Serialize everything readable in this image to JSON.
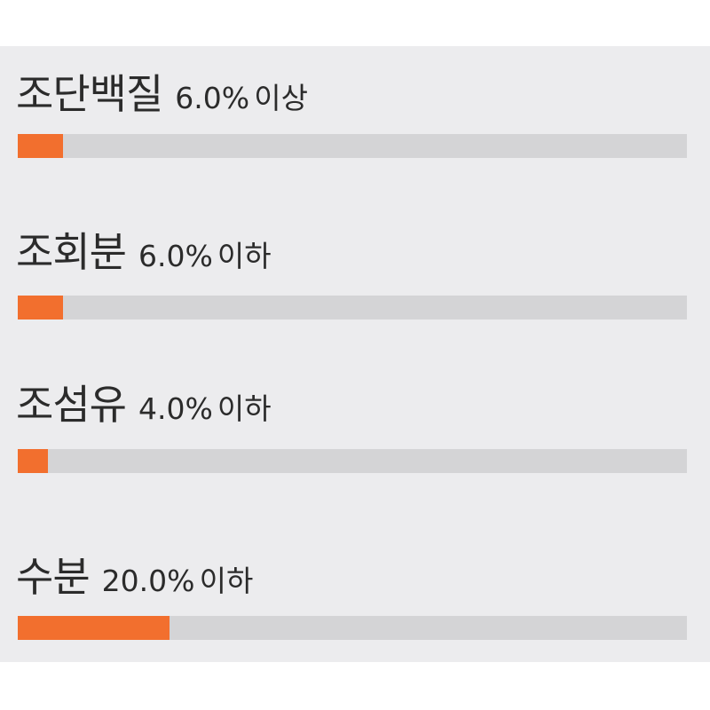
{
  "chart_data": {
    "type": "bar",
    "orientation": "horizontal",
    "bar_max_percent": 88,
    "accent_color": "#f26f2e",
    "track_color": "#d4d4d6",
    "items": [
      {
        "name": "조단백질",
        "value_label": "6.0%",
        "qualifier": "이상",
        "value": 6.0
      },
      {
        "name": "조회분",
        "value_label": "6.0%",
        "qualifier": "이하",
        "value": 6.0
      },
      {
        "name": "조섬유",
        "value_label": "4.0%",
        "qualifier": "이하",
        "value": 4.0
      },
      {
        "name": "수분",
        "value_label": "20.0%",
        "qualifier": "이하",
        "value": 20.0
      }
    ]
  }
}
